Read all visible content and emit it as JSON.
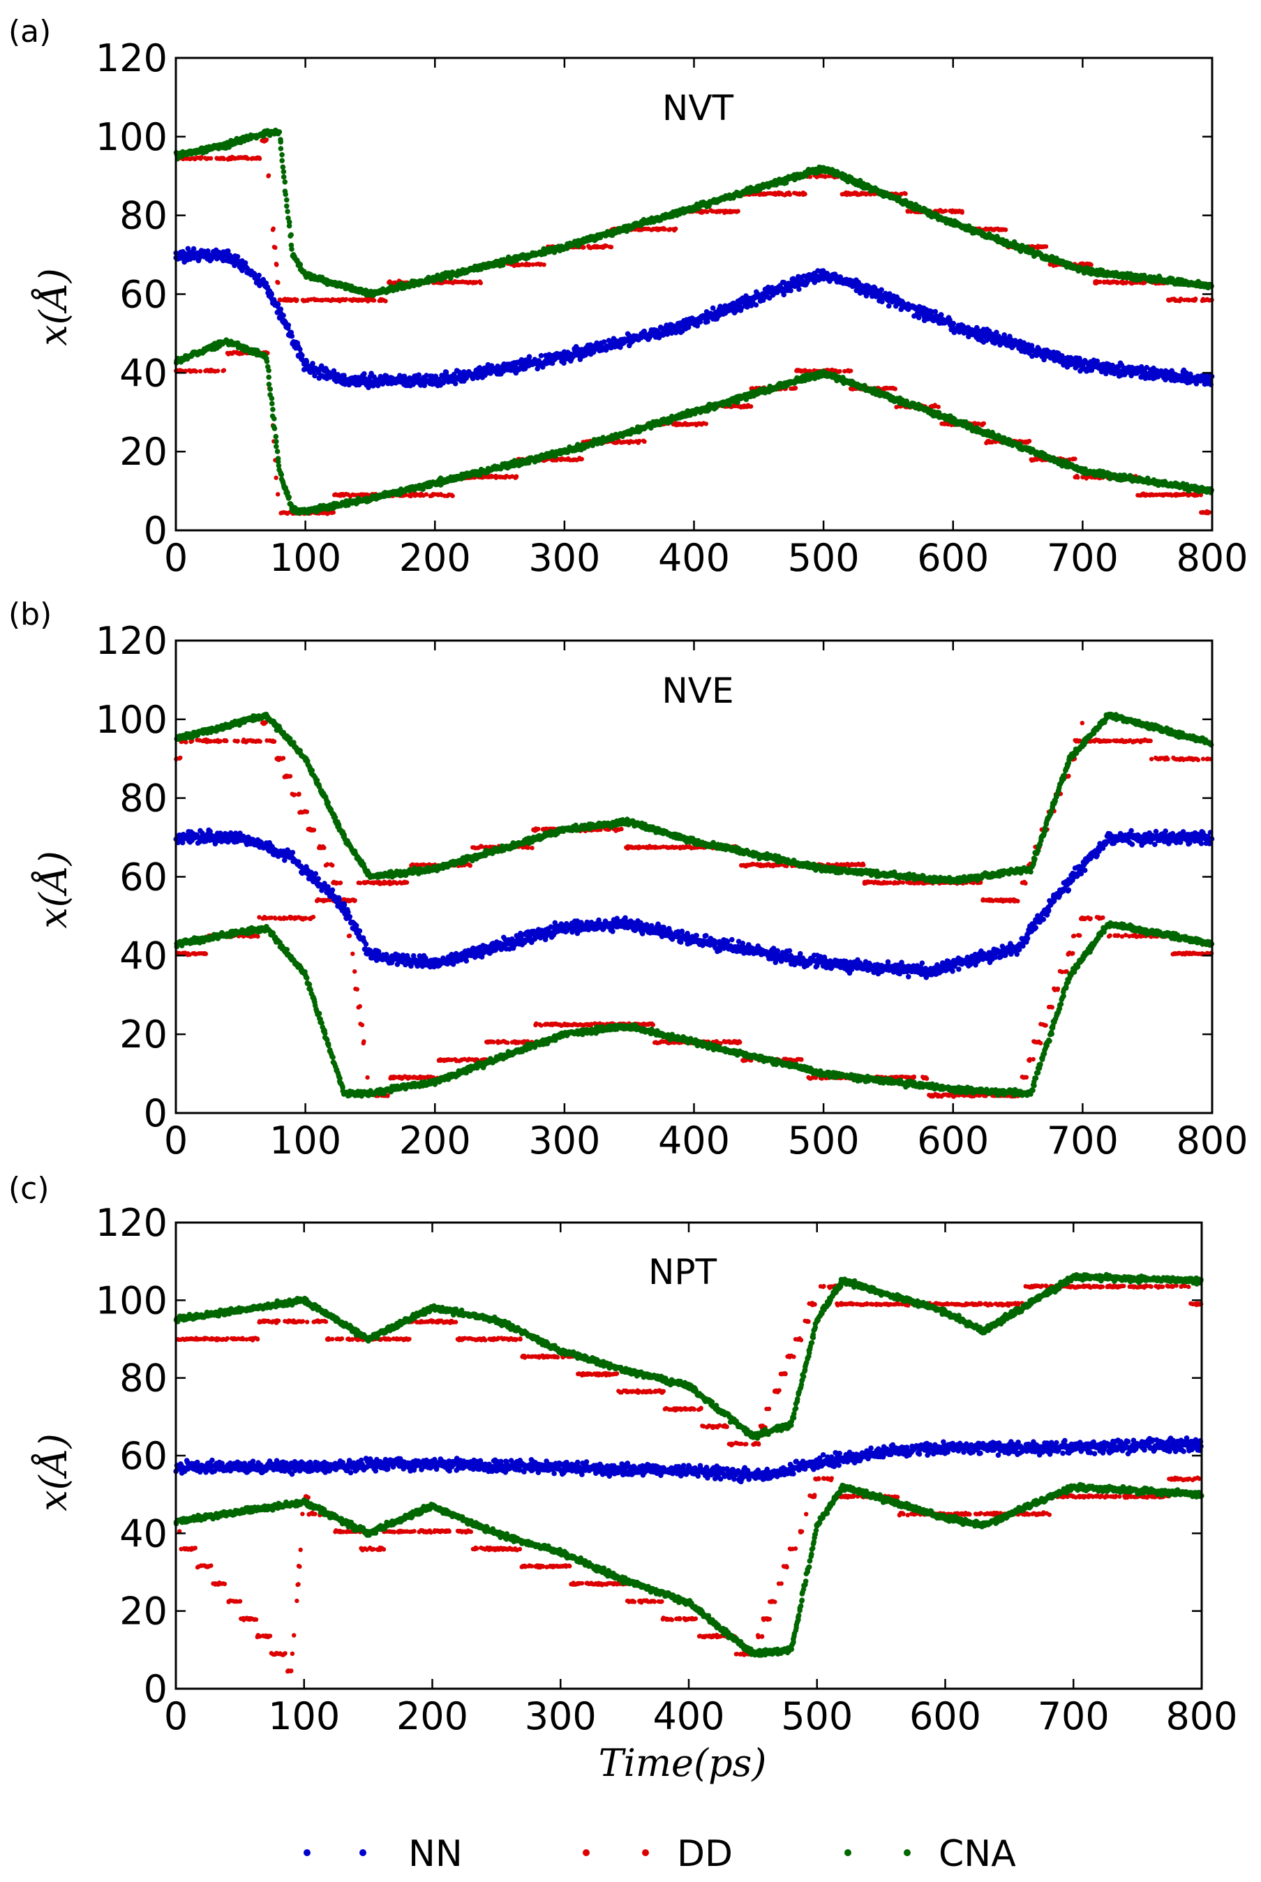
{
  "legend": [
    {
      "label": "NN",
      "color": "#0000cc"
    },
    {
      "label": "DD",
      "color": "#dd0000"
    },
    {
      "label": "CNA",
      "color": "#006600"
    }
  ],
  "chart_data": [
    {
      "type": "scatter",
      "panel_label": "(a)",
      "title": "NVT",
      "xlabel": "",
      "ylabel": "x(Å)",
      "xlim": [
        0,
        800
      ],
      "ylim": [
        0,
        120
      ],
      "xticks": [
        0,
        100,
        200,
        300,
        400,
        500,
        600,
        700,
        800
      ],
      "yticks": [
        0,
        20,
        40,
        60,
        80,
        100,
        120
      ],
      "series": [
        {
          "name": "NN",
          "x": [
            0,
            40,
            70,
            100,
            130,
            200,
            300,
            400,
            480,
            500,
            520,
            600,
            700,
            800
          ],
          "y": [
            70,
            70,
            62,
            42,
            38,
            38,
            44,
            53,
            63,
            65,
            63,
            52,
            42,
            38
          ]
        },
        {
          "name": "DD",
          "x": [
            0,
            70,
            80,
            200,
            300,
            400,
            500,
            600,
            700,
            800,
            0,
            70,
            80,
            200,
            300,
            400,
            500,
            600,
            700,
            800
          ],
          "y": [
            93,
            97,
            58,
            62,
            71,
            80,
            89,
            80,
            66,
            58,
            40,
            45,
            5,
            10,
            19,
            28,
            41,
            28,
            15,
            6
          ]
        },
        {
          "name": "CNA",
          "x": [
            0,
            40,
            70,
            80,
            90,
            100,
            150,
            200,
            300,
            400,
            500,
            600,
            700,
            800,
            0,
            40,
            70,
            80,
            90,
            100,
            150,
            200,
            300,
            400,
            500,
            600,
            700,
            800
          ],
          "y": [
            95,
            98,
            101,
            101,
            70,
            65,
            60,
            64,
            72,
            82,
            92,
            78,
            66,
            62,
            43,
            48,
            44,
            15,
            5,
            5,
            8,
            12,
            20,
            30,
            40,
            28,
            15,
            10
          ]
        }
      ]
    },
    {
      "type": "scatter",
      "panel_label": "(b)",
      "title": "NVE",
      "xlabel": "",
      "ylabel": "x(Å)",
      "xlim": [
        0,
        800
      ],
      "ylim": [
        0,
        120
      ],
      "xticks": [
        0,
        100,
        200,
        300,
        400,
        500,
        600,
        700,
        800
      ],
      "yticks": [
        0,
        20,
        40,
        60,
        80,
        100,
        120
      ],
      "series": [
        {
          "name": "NN",
          "x": [
            0,
            50,
            90,
            130,
            150,
            200,
            300,
            350,
            400,
            500,
            580,
            650,
            680,
            720,
            800
          ],
          "y": [
            70,
            70,
            65,
            52,
            40,
            38,
            47,
            48,
            44,
            38,
            36,
            42,
            55,
            70,
            70
          ]
        },
        {
          "name": "DD",
          "x": [
            0,
            70,
            130,
            150,
            300,
            400,
            500,
            600,
            650,
            700,
            800,
            0,
            70,
            130,
            150,
            300,
            400,
            500,
            600,
            650,
            700,
            800
          ],
          "y": [
            92,
            97,
            54,
            58,
            72,
            67,
            62,
            58,
            54,
            97,
            88,
            40,
            48,
            54,
            5,
            23,
            19,
            10,
            6,
            5,
            49,
            40
          ]
        },
        {
          "name": "CNA",
          "x": [
            0,
            70,
            100,
            130,
            150,
            200,
            300,
            350,
            400,
            500,
            600,
            660,
            690,
            720,
            800,
            0,
            70,
            100,
            130,
            150,
            200,
            300,
            350,
            400,
            500,
            600,
            660,
            690,
            720,
            800
          ],
          "y": [
            95,
            101,
            90,
            70,
            60,
            62,
            72,
            74,
            69,
            62,
            59,
            62,
            90,
            101,
            94,
            43,
            47,
            35,
            5,
            5,
            8,
            20,
            22,
            18,
            10,
            6,
            5,
            35,
            48,
            43
          ]
        }
      ]
    },
    {
      "type": "scatter",
      "panel_label": "(c)",
      "title": "NPT",
      "xlabel": "Time(ps)",
      "ylabel": "x(Å)",
      "xlim": [
        0,
        800
      ],
      "ylim": [
        0,
        120
      ],
      "xticks": [
        0,
        100,
        200,
        300,
        400,
        500,
        600,
        700,
        800
      ],
      "yticks": [
        0,
        20,
        40,
        60,
        80,
        100,
        120
      ],
      "series": [
        {
          "name": "NN",
          "x": [
            0,
            100,
            200,
            300,
            400,
            460,
            500,
            550,
            600,
            700,
            800
          ],
          "y": [
            57,
            57,
            58,
            57,
            56,
            55,
            58,
            61,
            62,
            62,
            63
          ]
        },
        {
          "name": "DD",
          "x": [
            0,
            100,
            150,
            200,
            300,
            350,
            400,
            450,
            500,
            600,
            700,
            800,
            0,
            90,
            100,
            150,
            200,
            300,
            350,
            400,
            450,
            500,
            600,
            700,
            800
          ],
          "y": [
            89,
            94,
            89,
            94,
            85,
            78,
            72,
            61,
            102,
            97,
            104,
            101,
            40,
            5,
            48,
            37,
            42,
            30,
            25,
            17,
            9,
            53,
            44,
            48,
            53
          ]
        },
        {
          "name": "CNA",
          "x": [
            0,
            100,
            150,
            200,
            250,
            300,
            350,
            400,
            450,
            480,
            500,
            520,
            600,
            630,
            700,
            800,
            0,
            100,
            150,
            200,
            250,
            300,
            350,
            400,
            450,
            480,
            500,
            520,
            600,
            630,
            700,
            800
          ],
          "y": [
            95,
            100,
            90,
            98,
            95,
            87,
            82,
            78,
            65,
            68,
            95,
            105,
            97,
            92,
            106,
            105,
            43,
            48,
            40,
            47,
            40,
            35,
            28,
            22,
            9,
            10,
            42,
            52,
            44,
            42,
            52,
            50
          ]
        }
      ]
    }
  ]
}
